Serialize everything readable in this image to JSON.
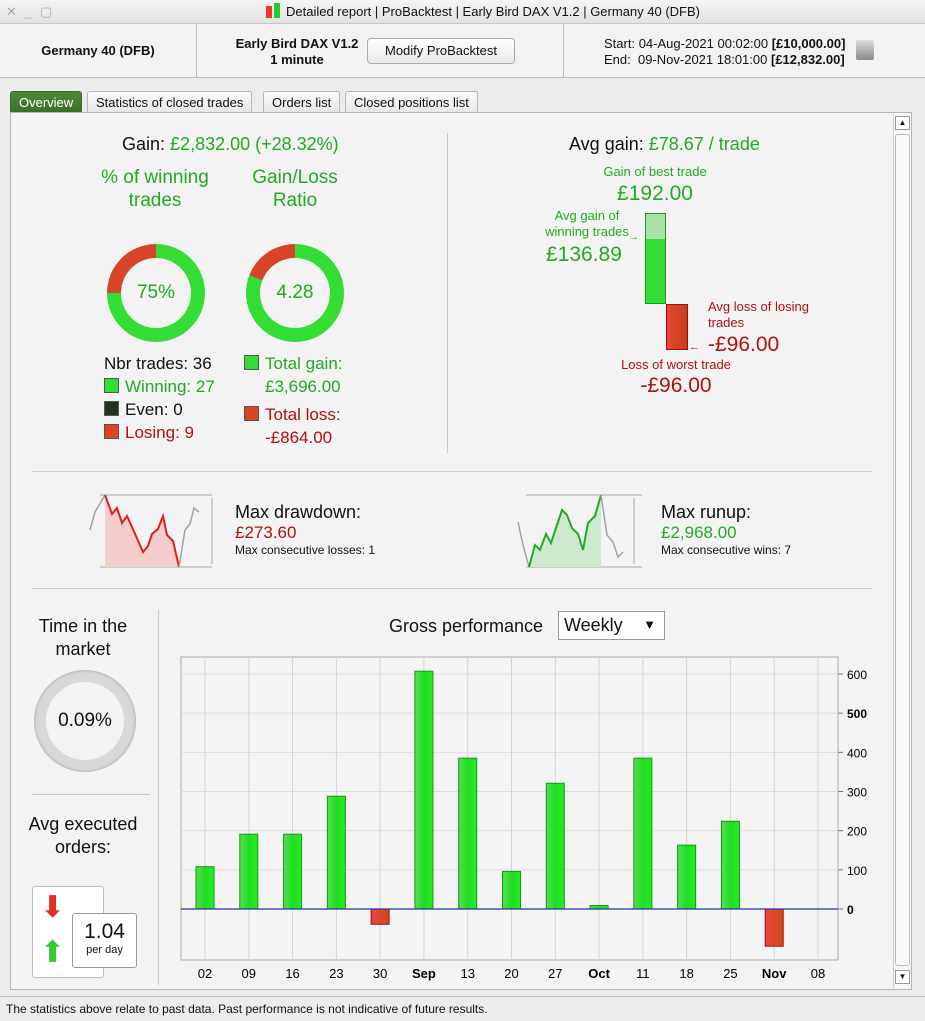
{
  "window": {
    "title": "Detailed report | ProBacktest | Early Bird DAX V1.2 | Germany 40 (DFB)"
  },
  "header": {
    "instrument": "Germany 40 (DFB)",
    "strategy": "Early Bird DAX V1.2",
    "timeframe": "1 minute",
    "modify_label": "Modify ProBacktest",
    "start_label": "Start:",
    "start_date": "04-Aug-2021 00:02:00",
    "start_capital": "[£10,000.00]",
    "end_label": "End:",
    "end_date": "09-Nov-2021 18:01:00",
    "end_capital": "[£12,832.00]"
  },
  "tabs": [
    {
      "label": "Overview",
      "active": true
    },
    {
      "label": "Statistics of closed trades"
    },
    {
      "label": "Orders list"
    },
    {
      "label": "Closed positions list"
    }
  ],
  "gain": {
    "label": "Gain:",
    "value": "£2,832.00 (+28.32%)"
  },
  "winning": {
    "title": "% of winning trades",
    "value": "75%",
    "percent": 75
  },
  "ratio": {
    "title": "Gain/Loss Ratio",
    "value": "4.28",
    "loss_share_percent": 19
  },
  "trades": {
    "nbr_label": "Nbr trades: 36",
    "winning": "Winning: 27",
    "even": "Even: 0",
    "losing": "Losing: 9"
  },
  "totals": {
    "gain_label": "Total gain:",
    "gain_value": "£3,696.00",
    "loss_label": "Total loss:",
    "loss_value": "-£864.00"
  },
  "avg": {
    "label": "Avg gain:",
    "value": "£78.67 / trade",
    "best_label": "Gain of best trade",
    "best_value": "£192.00",
    "avg_win_label": "Avg gain of winning trades",
    "avg_win_value": "£136.89",
    "avg_loss_label": "Avg loss of losing trades",
    "avg_loss_value": "-£96.00",
    "worst_label": "Loss of worst trade",
    "worst_value": "-£96.00"
  },
  "drawdown": {
    "label": "Max drawdown:",
    "value": "£273.60",
    "consecutive": "Max consecutive losses: 1"
  },
  "runup": {
    "label": "Max runup:",
    "value": "£2,968.00",
    "consecutive": "Max consecutive wins: 7"
  },
  "market": {
    "title": "Time in the market",
    "value": "0.09%"
  },
  "orders": {
    "title": "Avg executed orders:",
    "value": "1.04",
    "unit": "per day"
  },
  "perf": {
    "title": "Gross performance",
    "period": "Weekly"
  },
  "colors": {
    "green": "#22cc22",
    "red": "#dd3322",
    "accent": "#3a6e28"
  },
  "chart_data": {
    "type": "bar",
    "title": "Gross performance",
    "categories": [
      "02",
      "09",
      "16",
      "23",
      "30",
      "Sep",
      "13",
      "20",
      "27",
      "Oct",
      "11",
      "18",
      "25",
      "Nov",
      "08"
    ],
    "bold_categories": [
      "Sep",
      "Oct",
      "Nov"
    ],
    "values": [
      108,
      191,
      191,
      288,
      -39,
      607,
      385,
      96,
      321,
      9,
      385,
      163,
      224,
      -95,
      0
    ],
    "yticks": [
      "600",
      "500",
      "400",
      "300",
      "200",
      "100",
      "0"
    ],
    "ylim": [
      -130,
      645
    ],
    "grid": true
  },
  "footer": "The statistics above relate to past data. Past performance is not indicative of future results."
}
